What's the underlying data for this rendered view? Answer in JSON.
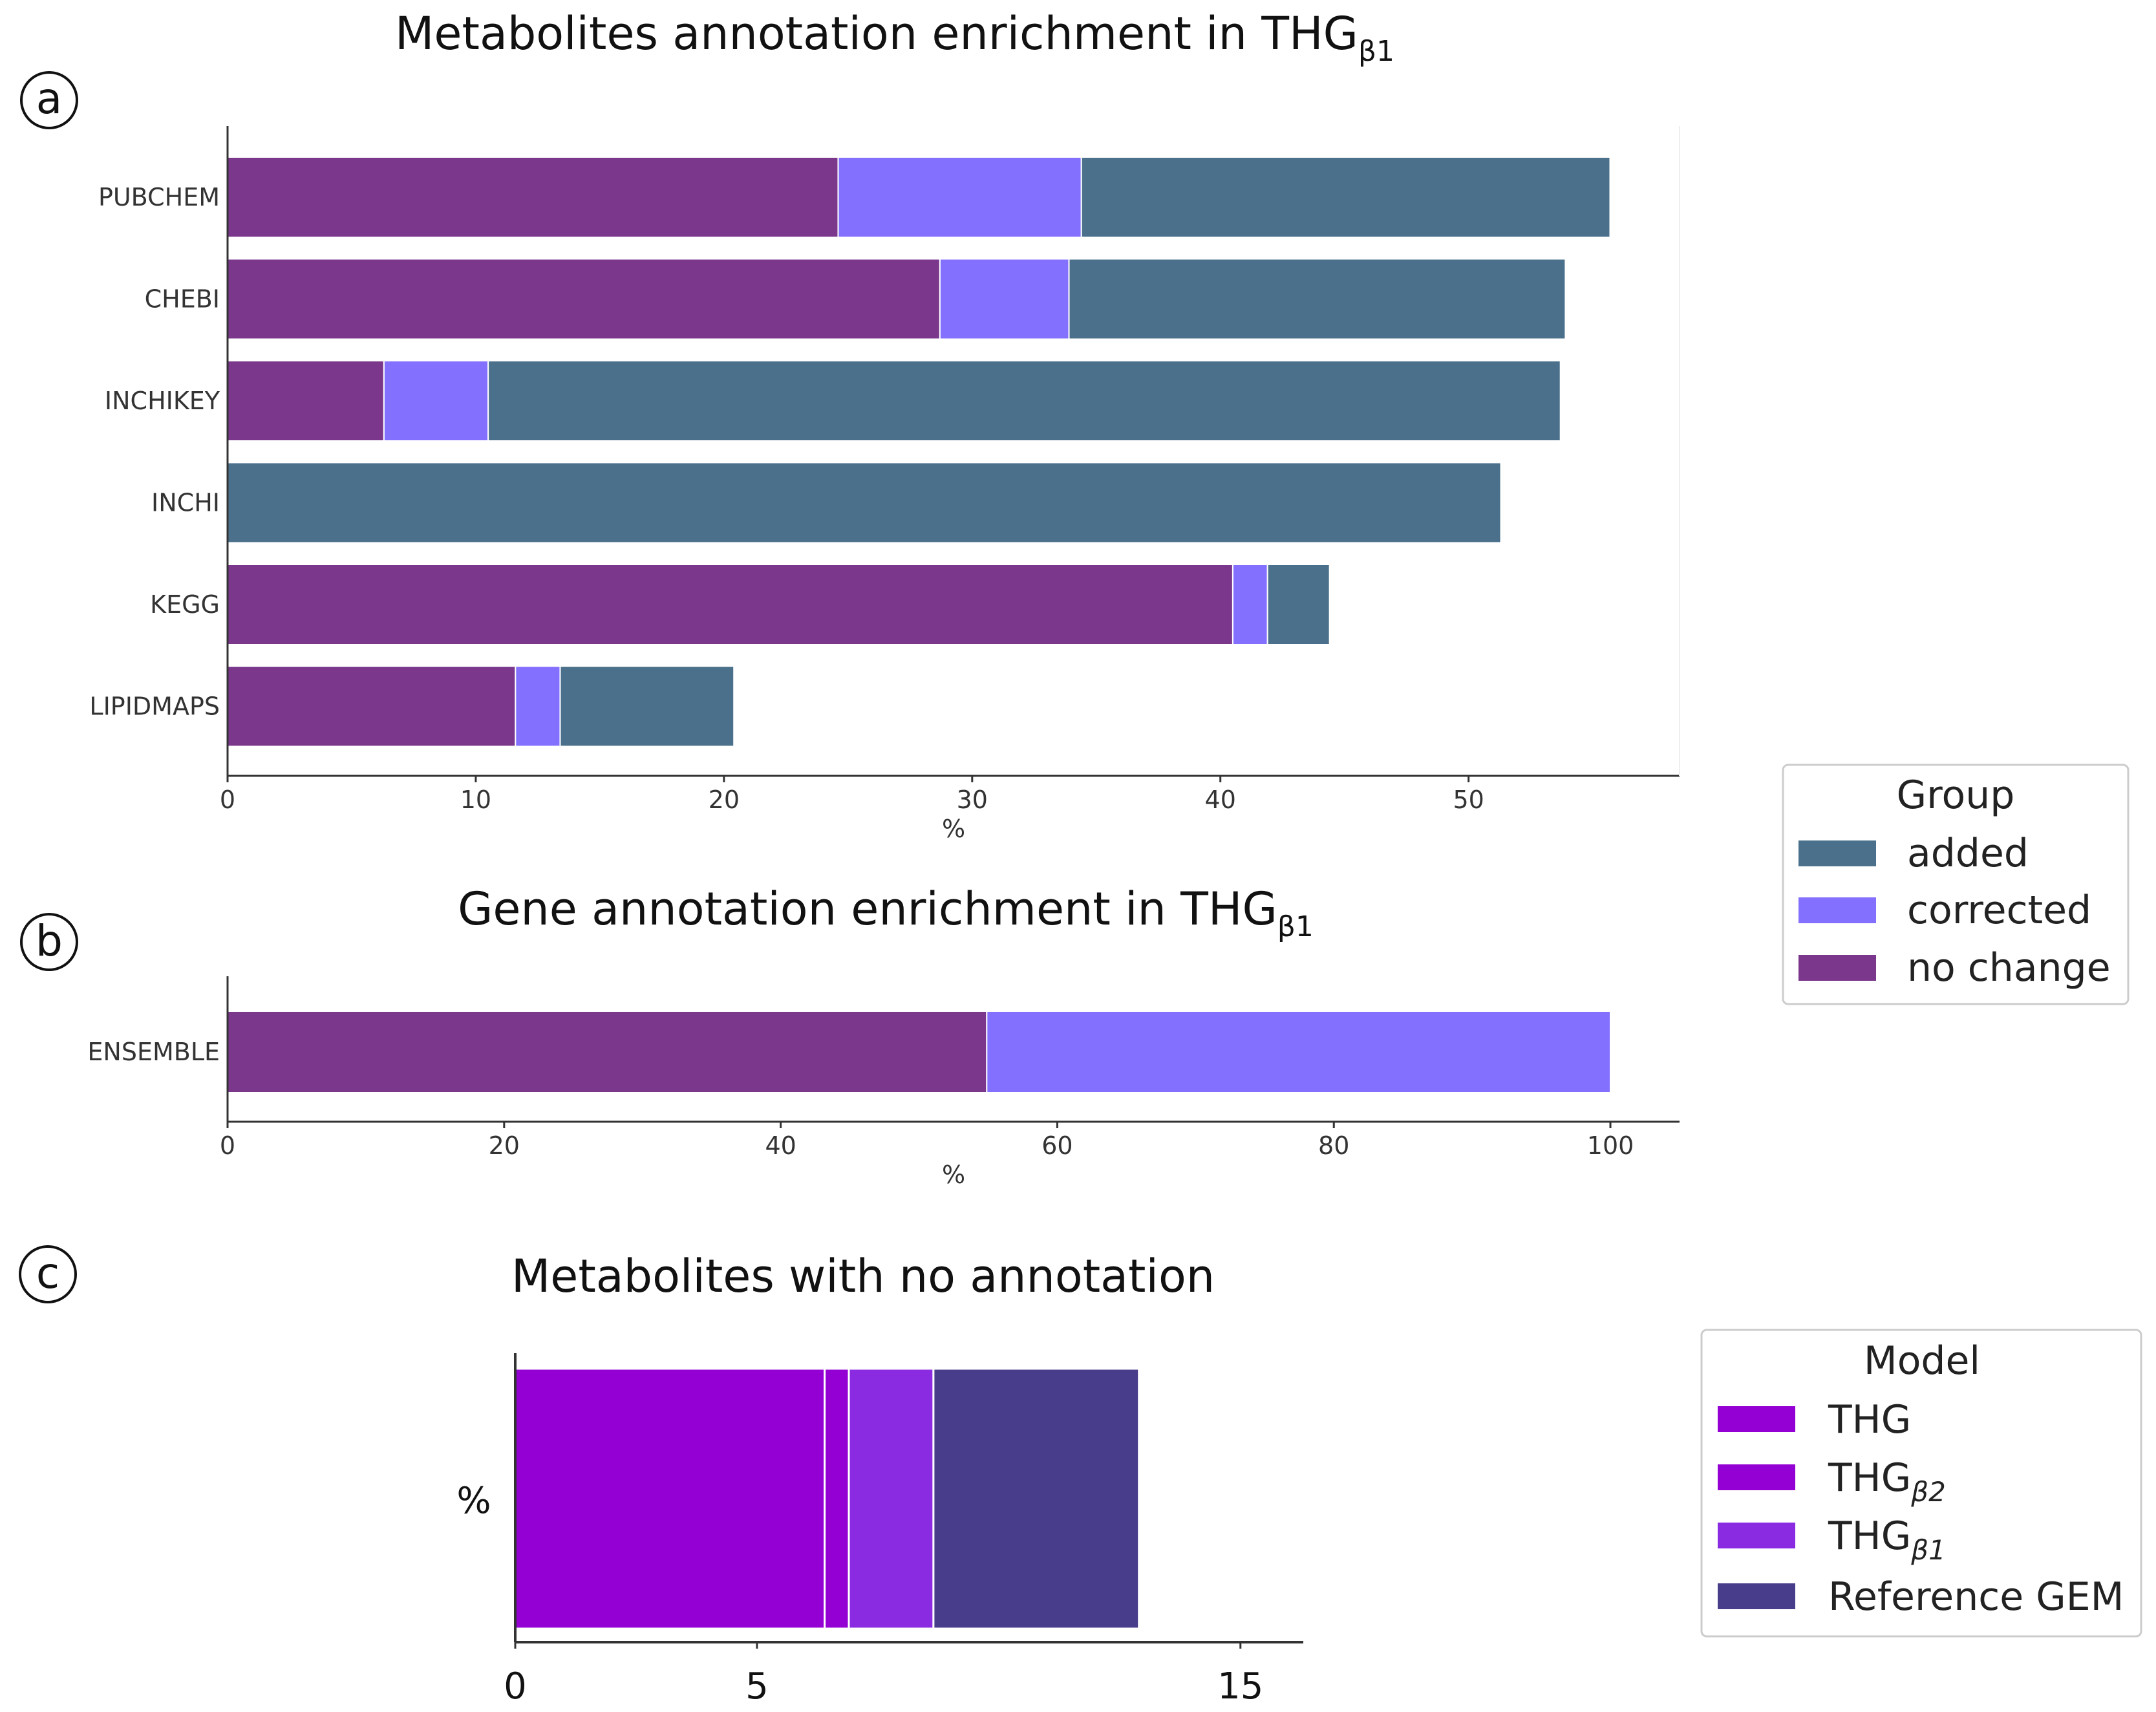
{
  "colors": {
    "added": "#4a708b",
    "corrected": "#8470ff",
    "no_change": "#7a378b",
    "THG": "#9400d3",
    "THG_b2": "#9400d3",
    "THG_b1": "#8a2be2",
    "Reference_GEM": "#483d8b"
  },
  "chart_data": [
    {
      "id": "a",
      "type": "bar",
      "orientation": "horizontal",
      "stacked": true,
      "panel_label": "a",
      "title": "Metabolites annotation enrichment in THG",
      "title_subscript": "β1",
      "xlabel": "%",
      "ylabel": "",
      "xlim": [
        0,
        58.5
      ],
      "xticks": [
        0,
        10,
        20,
        30,
        40,
        50
      ],
      "categories": [
        "PUBCHEM",
        "CHEBI",
        "INCHIKEY",
        "INCHI",
        "KEGG",
        "LIPIDMAPS"
      ],
      "series": [
        {
          "name": "no change",
          "color_key": "no_change",
          "values": [
            24.6,
            28.7,
            6.3,
            0,
            40.5,
            11.6
          ]
        },
        {
          "name": "corrected",
          "color_key": "corrected",
          "values": [
            9.8,
            5.2,
            4.2,
            0,
            1.4,
            1.8
          ]
        },
        {
          "name": "added",
          "color_key": "added",
          "values": [
            21.3,
            20.0,
            43.2,
            51.3,
            2.5,
            7.0
          ]
        }
      ],
      "grid": false
    },
    {
      "id": "b",
      "type": "bar",
      "orientation": "horizontal",
      "stacked": true,
      "panel_label": "b",
      "title": "Gene annotation enrichment in THG",
      "title_subscript": "β1",
      "xlabel": "%",
      "ylabel": "",
      "xlim": [
        0,
        105
      ],
      "xticks": [
        0,
        20,
        40,
        60,
        80,
        100
      ],
      "categories": [
        "ENSEMBLE"
      ],
      "series": [
        {
          "name": "no change",
          "color_key": "no_change",
          "values": [
            54.9
          ]
        },
        {
          "name": "corrected",
          "color_key": "corrected",
          "values": [
            45.1
          ]
        },
        {
          "name": "added",
          "color_key": "added",
          "values": [
            0
          ]
        }
      ],
      "grid": false
    },
    {
      "id": "c",
      "type": "bar",
      "orientation": "horizontal",
      "stacked": true,
      "panel_label": "c",
      "title": "Metabolites with no annotation",
      "xlabel": "",
      "ylabel": "%",
      "xlim": [
        0,
        16.3
      ],
      "xticks": [
        0,
        5,
        15
      ],
      "categories": [
        ""
      ],
      "series": [
        {
          "name": "THG",
          "color_key": "THG",
          "values": [
            6.4
          ]
        },
        {
          "name": "THGβ2",
          "color_key": "THG_b2",
          "values": [
            0.5
          ]
        },
        {
          "name": "THGβ1",
          "color_key": "THG_b1",
          "values": [
            1.75
          ]
        },
        {
          "name": "Reference GEM",
          "color_key": "Reference_GEM",
          "values": [
            4.25
          ]
        }
      ],
      "grid": false
    }
  ],
  "legends": {
    "group": {
      "title": "Group",
      "items": [
        {
          "label": "added",
          "color_key": "added"
        },
        {
          "label": "corrected",
          "color_key": "corrected"
        },
        {
          "label": "no change",
          "color_key": "no_change"
        }
      ]
    },
    "model": {
      "title": "Model",
      "items": [
        {
          "label": "THG",
          "sub": "",
          "color_key": "THG"
        },
        {
          "label": "THG",
          "sub": "β2",
          "color_key": "THG_b2"
        },
        {
          "label": "THG",
          "sub": "β1",
          "color_key": "THG_b1"
        },
        {
          "label": "Reference GEM",
          "sub": "",
          "color_key": "Reference_GEM"
        }
      ]
    }
  }
}
